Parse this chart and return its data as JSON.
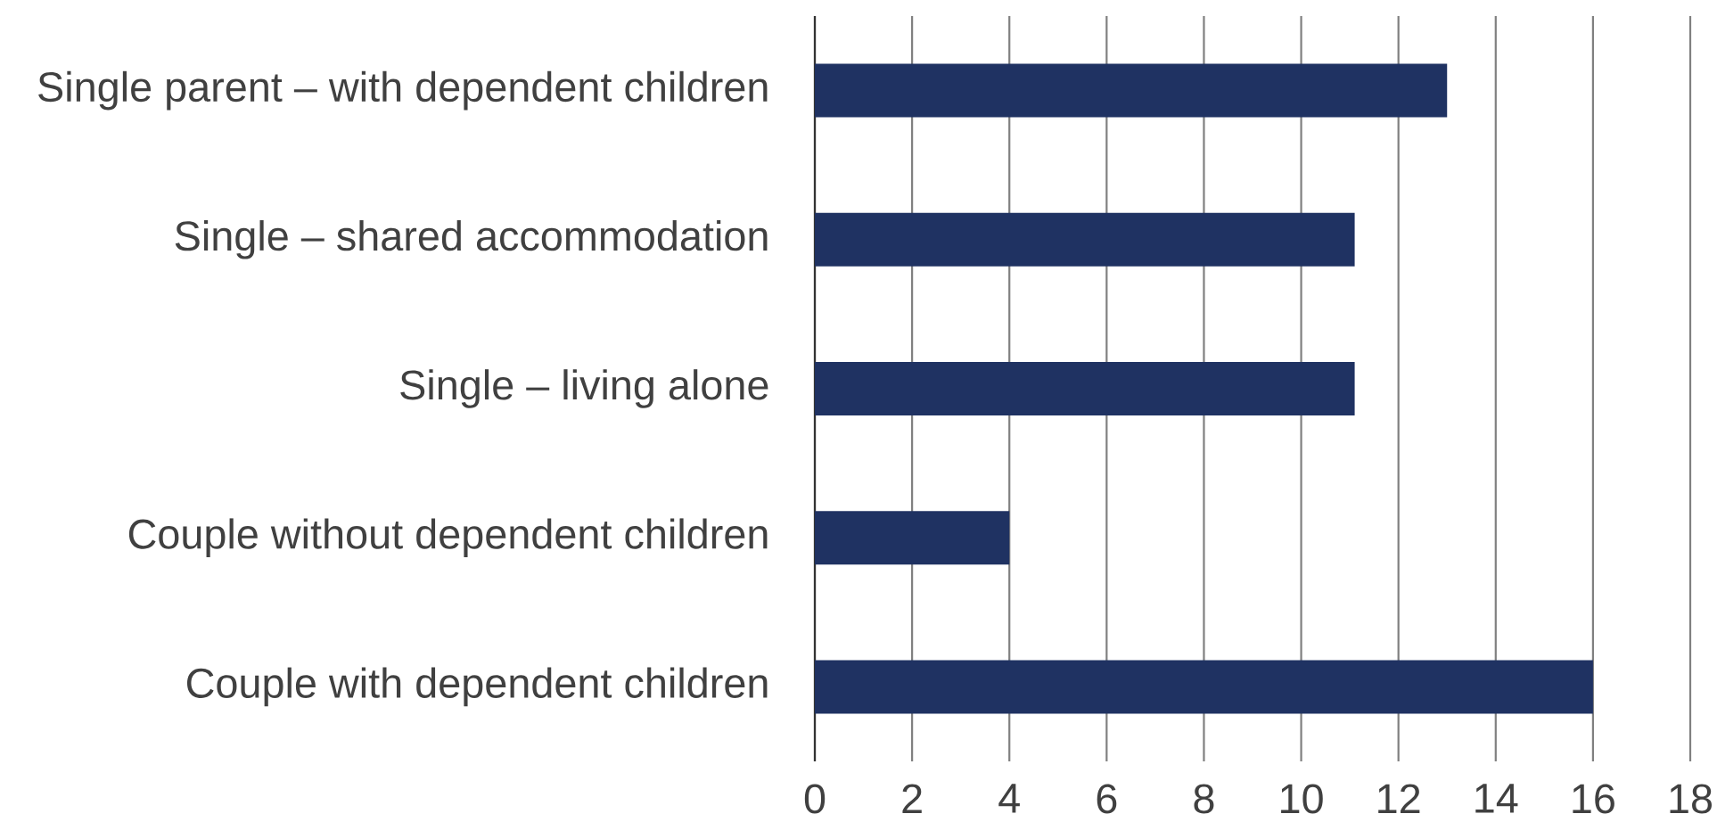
{
  "chart_data": {
    "type": "bar",
    "orientation": "horizontal",
    "categories": [
      "Single parent – with dependent children",
      "Single – shared accommodation",
      "Single – living alone",
      "Couple without dependent children",
      "Couple with dependent children"
    ],
    "values": [
      13,
      11.1,
      11.1,
      4,
      16
    ],
    "color": "#1f3262",
    "xlim": [
      0,
      18
    ],
    "xticks": [
      0,
      2,
      4,
      6,
      8,
      10,
      12,
      14,
      16,
      18
    ],
    "grid": "x"
  }
}
